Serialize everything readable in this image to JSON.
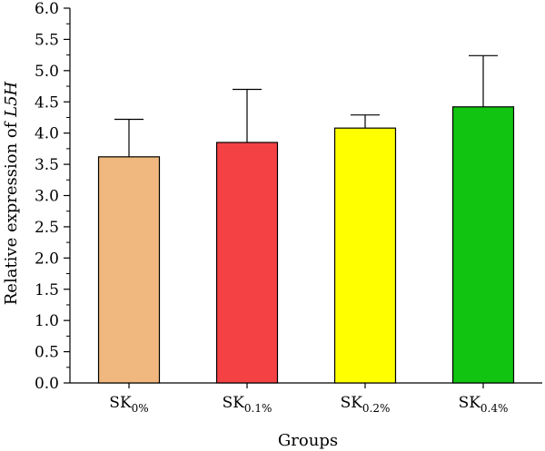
{
  "chart_data": {
    "type": "bar",
    "xlabel": "Groups",
    "ylabel_prefix": "Relative expression of ",
    "ylabel_gene": "L5H",
    "ylim": [
      0,
      6.0
    ],
    "yticks": [
      "0.0",
      "0.5",
      "1.0",
      "1.5",
      "2.0",
      "2.5",
      "3.0",
      "3.5",
      "4.0",
      "4.5",
      "5.0",
      "5.5",
      "6.0"
    ],
    "grid": false,
    "categories": [
      {
        "base": "SK",
        "sub": "0%",
        "value": 3.62,
        "error": 0.6,
        "color": "#f0b87e"
      },
      {
        "base": "SK",
        "sub": "0.1%",
        "value": 3.85,
        "error": 0.85,
        "color": "#f44144"
      },
      {
        "base": "SK",
        "sub": "0.2%",
        "value": 4.08,
        "error": 0.21,
        "color": "#ffff00"
      },
      {
        "base": "SK",
        "sub": "0.4%",
        "value": 4.42,
        "error": 0.82,
        "color": "#11c411"
      }
    ]
  }
}
